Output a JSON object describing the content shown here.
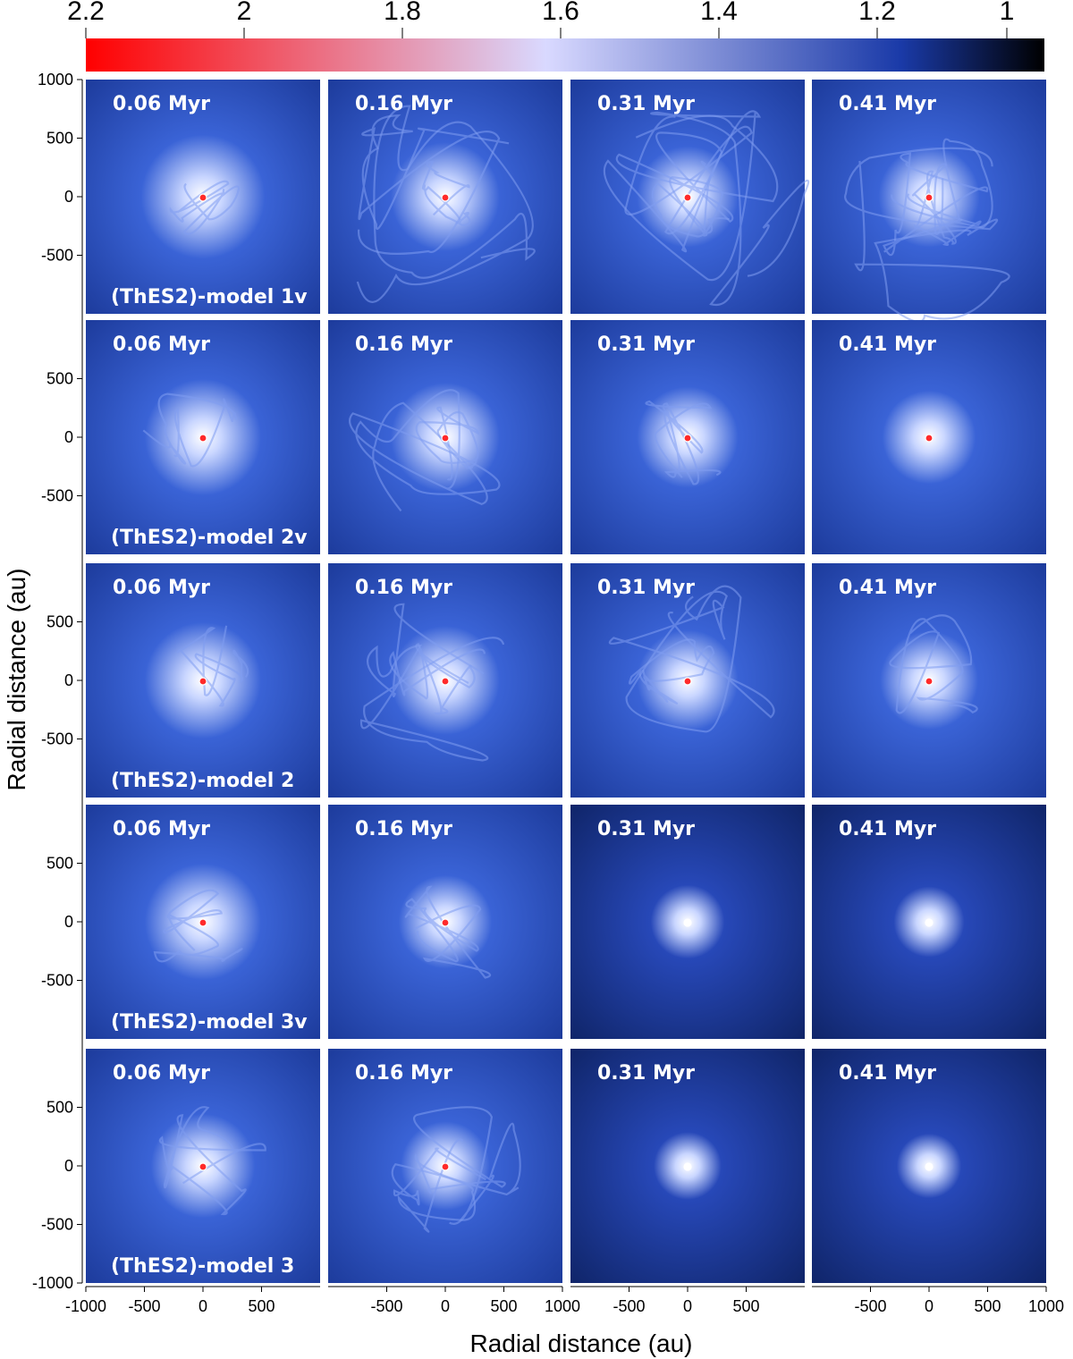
{
  "chart_data": {
    "type": "heatmap",
    "title": "",
    "xlabel": "Radial distance (au)",
    "ylabel": "Radial distance (au)",
    "xlim": [
      -1000,
      1000
    ],
    "ylim": [
      -1000,
      1000
    ],
    "grid": false,
    "colorbar": {
      "position": "top",
      "range": [
        2.2,
        1
      ],
      "ticks": [
        "2.2",
        "2",
        "1.8",
        "1.6",
        "1.4",
        "1.2",
        "1"
      ],
      "colors": [
        "#ff0000",
        "#d9d9ff",
        "#1a3aa8",
        "#000000"
      ]
    },
    "x_ticks": [
      [
        "-1000",
        "-500",
        "0",
        "500"
      ],
      [
        "-500",
        "0",
        "500",
        "1000"
      ],
      [
        "-500",
        "0",
        "500"
      ],
      [
        "-500",
        "0",
        "500",
        "1000"
      ]
    ],
    "y_ticks_first_row": [
      "1000",
      "500",
      "0",
      "-500"
    ],
    "y_ticks_middle_rows": [
      "500",
      "0",
      "-500"
    ],
    "y_ticks_last_row": [
      "500",
      "0",
      "-500",
      "-1000"
    ],
    "time_labels": [
      "0.06 Myr",
      "0.16 Myr",
      "0.31 Myr",
      "0.41 Myr"
    ],
    "rows": [
      {
        "model": "(ThES2)-model 1v",
        "times": [
          "0.06 Myr",
          "0.16 Myr",
          "0.31 Myr",
          "0.41 Myr"
        ],
        "glow": [
          0.55,
          0.45,
          0.4,
          0.4
        ],
        "filaments": [
          1,
          3,
          3,
          3
        ]
      },
      {
        "model": "(ThES2)-model 2v",
        "times": [
          "0.06 Myr",
          "0.16 Myr",
          "0.31 Myr",
          "0.41 Myr"
        ],
        "glow": [
          0.5,
          0.45,
          0.4,
          0.35
        ],
        "filaments": [
          1,
          2,
          1,
          0
        ]
      },
      {
        "model": "(ThES2)-model 2",
        "times": [
          "0.06 Myr",
          "0.16 Myr",
          "0.31 Myr",
          "0.41 Myr"
        ],
        "glow": [
          0.5,
          0.45,
          0.4,
          0.38
        ],
        "filaments": [
          1,
          2,
          2,
          1
        ]
      },
      {
        "model": "(ThES2)-model 3v",
        "times": [
          "0.06 Myr",
          "0.16 Myr",
          "0.31 Myr",
          "0.41 Myr"
        ],
        "glow": [
          0.5,
          0.35,
          0.22,
          0.2
        ],
        "filaments": [
          1,
          1,
          0,
          0
        ]
      },
      {
        "model": "(ThES2)-model 3",
        "times": [
          "0.06 Myr",
          "0.16 Myr",
          "0.31 Myr",
          "0.41 Myr"
        ],
        "glow": [
          0.42,
          0.32,
          0.18,
          0.16
        ],
        "filaments": [
          1,
          2,
          0,
          0
        ]
      }
    ]
  }
}
